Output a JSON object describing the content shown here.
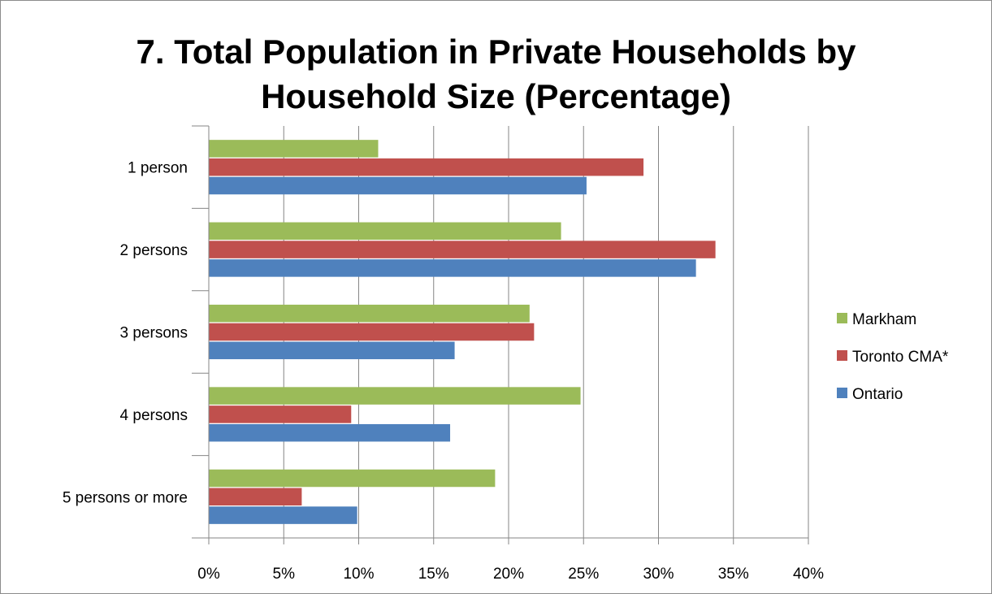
{
  "chart_data": {
    "type": "bar",
    "orientation": "horizontal",
    "title_lines": [
      "7. Total Population in Private Households by",
      "Household Size (Percentage)"
    ],
    "categories": [
      "1 person",
      "2 persons",
      "3 persons",
      "4 persons",
      "5 persons or more"
    ],
    "series": [
      {
        "name": "Markham",
        "color": "#9bbb59",
        "values": [
          11.3,
          23.5,
          21.4,
          24.8,
          19.1
        ]
      },
      {
        "name": "Toronto CMA*",
        "color": "#c0504d",
        "values": [
          29.0,
          33.8,
          21.7,
          9.5,
          6.2
        ]
      },
      {
        "name": "Ontario",
        "color": "#4f81bd",
        "values": [
          25.2,
          32.5,
          16.4,
          16.1,
          9.9
        ]
      }
    ],
    "xlim": [
      0,
      40
    ],
    "x_ticks": [
      0,
      5,
      10,
      15,
      20,
      25,
      30,
      35,
      40
    ],
    "x_tick_labels": [
      "0%",
      "5%",
      "10%",
      "15%",
      "20%",
      "25%",
      "30%",
      "35%",
      "40%"
    ],
    "grid": "vertical major gridlines",
    "legend_position": "right"
  }
}
